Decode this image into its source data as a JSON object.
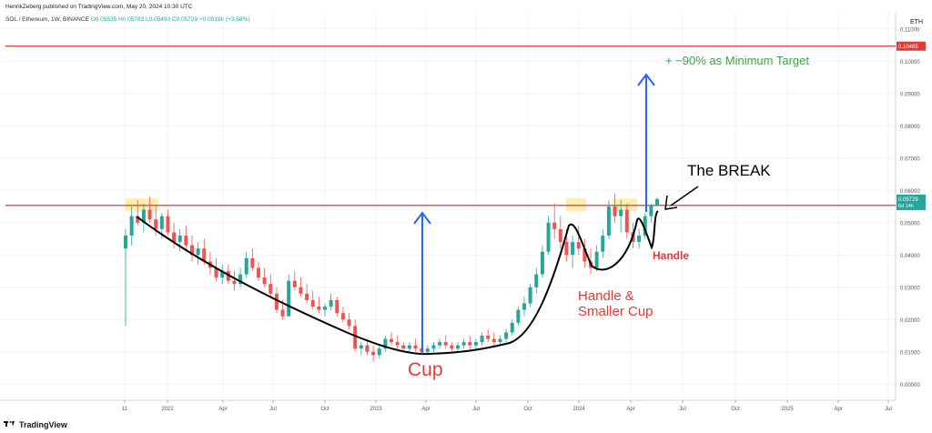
{
  "header": {
    "published": "HenrikZeberg published on TradingView.com, May 20, 2024 10:30 UTC",
    "symbol": "SOL / Ethereum, 1W, BINANCE",
    "ohlc": "O0.05535 H0.05783 L0.05498 C0.05729 +0.00198 (+3.58%)"
  },
  "currency_label": "ETH",
  "footer": {
    "logo_text": "TradingView"
  },
  "colors": {
    "up": "#26a69a",
    "down": "#ef5350",
    "resistance": "#e53935",
    "target_line": "#e53935",
    "arrow": "#2962ff",
    "annotation_red": "#e53935",
    "annotation_green": "#43a047",
    "curve": "#000000",
    "highlight": "#fbe27a"
  },
  "chart_data": {
    "type": "candlestick",
    "title": "",
    "y_axis": {
      "ticks": [
        "0.11000",
        "0.10000",
        "0.09000",
        "0.08000",
        "0.07000",
        "0.06000",
        "0.05000",
        "0.04000",
        "0.03000",
        "0.02000",
        "0.01000",
        "0.00000"
      ],
      "ylim": [
        -0.005,
        0.115
      ]
    },
    "x_axis": {
      "ticks": [
        "11",
        "2022",
        "Apr",
        "Jul",
        "Oct",
        "2023",
        "Apr",
        "Jul",
        "Oct",
        "2024",
        "Apr",
        "Jul",
        "Oct",
        "2025",
        "Apr",
        "Jul"
      ]
    },
    "horizontal_lines": [
      {
        "name": "resistance",
        "value": 0.05535,
        "label": "0.05535"
      },
      {
        "name": "target",
        "value": 0.10465,
        "label": "0.10465"
      }
    ],
    "price_labels": [
      {
        "value": 0.05729,
        "label": "0.05729",
        "sublabel": "6d 14h"
      }
    ],
    "candles_weekly_approx": [
      [
        0.042,
        0.048,
        0.018,
        0.046
      ],
      [
        0.046,
        0.055,
        0.043,
        0.052
      ],
      [
        0.052,
        0.057,
        0.049,
        0.05
      ],
      [
        0.05,
        0.056,
        0.047,
        0.054
      ],
      [
        0.054,
        0.058,
        0.05,
        0.051
      ],
      [
        0.051,
        0.055,
        0.046,
        0.048
      ],
      [
        0.048,
        0.053,
        0.045,
        0.052
      ],
      [
        0.052,
        0.054,
        0.046,
        0.047
      ],
      [
        0.047,
        0.05,
        0.042,
        0.044
      ],
      [
        0.044,
        0.048,
        0.041,
        0.046
      ],
      [
        0.046,
        0.049,
        0.041,
        0.043
      ],
      [
        0.043,
        0.046,
        0.038,
        0.04
      ],
      [
        0.04,
        0.044,
        0.037,
        0.042
      ],
      [
        0.042,
        0.045,
        0.037,
        0.038
      ],
      [
        0.038,
        0.041,
        0.034,
        0.036
      ],
      [
        0.036,
        0.039,
        0.032,
        0.033
      ],
      [
        0.033,
        0.037,
        0.031,
        0.035
      ],
      [
        0.035,
        0.037,
        0.031,
        0.032
      ],
      [
        0.032,
        0.035,
        0.029,
        0.031
      ],
      [
        0.031,
        0.036,
        0.03,
        0.034
      ],
      [
        0.034,
        0.041,
        0.033,
        0.039
      ],
      [
        0.039,
        0.042,
        0.035,
        0.036
      ],
      [
        0.036,
        0.038,
        0.032,
        0.033
      ],
      [
        0.033,
        0.036,
        0.03,
        0.031
      ],
      [
        0.031,
        0.034,
        0.027,
        0.028
      ],
      [
        0.028,
        0.03,
        0.022,
        0.023
      ],
      [
        0.023,
        0.026,
        0.02,
        0.021
      ],
      [
        0.021,
        0.034,
        0.021,
        0.032
      ],
      [
        0.032,
        0.035,
        0.029,
        0.03
      ],
      [
        0.03,
        0.033,
        0.027,
        0.028
      ],
      [
        0.028,
        0.031,
        0.025,
        0.026
      ],
      [
        0.026,
        0.029,
        0.023,
        0.024
      ],
      [
        0.024,
        0.027,
        0.022,
        0.023
      ],
      [
        0.023,
        0.025,
        0.021,
        0.024
      ],
      [
        0.024,
        0.028,
        0.023,
        0.026
      ],
      [
        0.026,
        0.027,
        0.021,
        0.022
      ],
      [
        0.022,
        0.024,
        0.019,
        0.02
      ],
      [
        0.02,
        0.022,
        0.017,
        0.018
      ],
      [
        0.018,
        0.02,
        0.01,
        0.011
      ],
      [
        0.011,
        0.013,
        0.009,
        0.012
      ],
      [
        0.012,
        0.014,
        0.009,
        0.01
      ],
      [
        0.01,
        0.012,
        0.007,
        0.009
      ],
      [
        0.009,
        0.012,
        0.008,
        0.011
      ],
      [
        0.011,
        0.015,
        0.01,
        0.014
      ],
      [
        0.014,
        0.016,
        0.012,
        0.013
      ],
      [
        0.013,
        0.015,
        0.011,
        0.012
      ],
      [
        0.012,
        0.013,
        0.01,
        0.011
      ],
      [
        0.011,
        0.013,
        0.01,
        0.012
      ],
      [
        0.012,
        0.014,
        0.01,
        0.011
      ],
      [
        0.011,
        0.012,
        0.009,
        0.01
      ],
      [
        0.01,
        0.012,
        0.009,
        0.011
      ],
      [
        0.011,
        0.013,
        0.01,
        0.012
      ],
      [
        0.012,
        0.014,
        0.011,
        0.013
      ],
      [
        0.013,
        0.015,
        0.011,
        0.012
      ],
      [
        0.012,
        0.013,
        0.01,
        0.011
      ],
      [
        0.011,
        0.013,
        0.01,
        0.012
      ],
      [
        0.012,
        0.014,
        0.011,
        0.013
      ],
      [
        0.013,
        0.015,
        0.011,
        0.012
      ],
      [
        0.012,
        0.014,
        0.011,
        0.013
      ],
      [
        0.013,
        0.016,
        0.012,
        0.015
      ],
      [
        0.015,
        0.017,
        0.013,
        0.014
      ],
      [
        0.014,
        0.016,
        0.012,
        0.013
      ],
      [
        0.013,
        0.015,
        0.012,
        0.014
      ],
      [
        0.014,
        0.017,
        0.013,
        0.016
      ],
      [
        0.016,
        0.02,
        0.015,
        0.019
      ],
      [
        0.019,
        0.024,
        0.018,
        0.023
      ],
      [
        0.023,
        0.027,
        0.021,
        0.025
      ],
      [
        0.025,
        0.031,
        0.024,
        0.03
      ],
      [
        0.03,
        0.036,
        0.028,
        0.034
      ],
      [
        0.034,
        0.043,
        0.033,
        0.041
      ],
      [
        0.041,
        0.052,
        0.04,
        0.05
      ],
      [
        0.05,
        0.056,
        0.045,
        0.048
      ],
      [
        0.048,
        0.052,
        0.042,
        0.044
      ],
      [
        0.044,
        0.048,
        0.038,
        0.04
      ],
      [
        0.04,
        0.046,
        0.036,
        0.044
      ],
      [
        0.044,
        0.049,
        0.04,
        0.042
      ],
      [
        0.042,
        0.045,
        0.036,
        0.038
      ],
      [
        0.038,
        0.042,
        0.034,
        0.036
      ],
      [
        0.036,
        0.043,
        0.035,
        0.041
      ],
      [
        0.041,
        0.048,
        0.039,
        0.046
      ],
      [
        0.046,
        0.057,
        0.045,
        0.055
      ],
      [
        0.055,
        0.059,
        0.05,
        0.052
      ],
      [
        0.052,
        0.057,
        0.047,
        0.054
      ],
      [
        0.054,
        0.056,
        0.045,
        0.047
      ],
      [
        0.047,
        0.05,
        0.042,
        0.044
      ],
      [
        0.044,
        0.048,
        0.042,
        0.046
      ],
      [
        0.046,
        0.053,
        0.045,
        0.052
      ],
      [
        0.052,
        0.056,
        0.05,
        0.0553
      ],
      [
        0.05535,
        0.05783,
        0.05498,
        0.05729
      ]
    ]
  },
  "annotations": {
    "cup": "Cup",
    "handle_cup_line1": "Handle &",
    "handle_cup_line2": "Smaller Cup",
    "handle": "Handle",
    "the_break": "The BREAK",
    "target": "+ ~90% as Minimum Target"
  }
}
